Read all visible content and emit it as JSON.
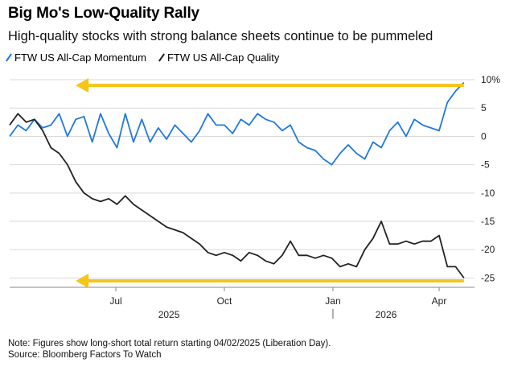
{
  "title": "Big Mo's Low-Quality Rally",
  "subtitle": "High-quality stocks with strong balance sheets continue to be pummeled",
  "note": "Note: Figures show long-short total return starting 04/02/2025 (Liberation Day).",
  "source": "Source: Bloomberg Factors To Watch",
  "colors": {
    "momentum": "#1f78e0",
    "quality": "#222222",
    "arrow": "#f5c518"
  },
  "chart_data": {
    "type": "line",
    "title": "Big Mo's Low-Quality Rally",
    "subtitle": "High-quality stocks with strong balance sheets continue to be pummeled",
    "y_tick_labels": [
      "10%",
      "5",
      "0",
      "-5",
      "-10",
      "-15",
      "-20",
      "-25"
    ],
    "y_ticks": [
      10,
      5,
      0,
      -5,
      -10,
      -15,
      -20,
      -25
    ],
    "ylim": [
      -26.5,
      11
    ],
    "x_tick_labels": [
      "Jul",
      "Oct",
      "Jan",
      "Apr"
    ],
    "x_ticks": [
      "2025-07-01",
      "2025-10-01",
      "2026-01-01",
      "2026-04-01"
    ],
    "year_labels": [
      "2025",
      "2026"
    ],
    "year_positions": [
      "2025-08-15",
      "2026-02-15"
    ],
    "xlim": [
      "2025-04-02",
      "2026-05-01"
    ],
    "grid": true,
    "legend": "top-left",
    "series": [
      {
        "name": "FTW US All-Cap Momentum",
        "x": [
          "2025-04-02",
          "2025-04-09",
          "2025-04-16",
          "2025-04-23",
          "2025-04-30",
          "2025-05-07",
          "2025-05-14",
          "2025-05-21",
          "2025-05-28",
          "2025-06-04",
          "2025-06-11",
          "2025-06-18",
          "2025-06-25",
          "2025-07-02",
          "2025-07-09",
          "2025-07-16",
          "2025-07-23",
          "2025-07-30",
          "2025-08-06",
          "2025-08-13",
          "2025-08-20",
          "2025-08-27",
          "2025-09-03",
          "2025-09-10",
          "2025-09-17",
          "2025-09-24",
          "2025-10-01",
          "2025-10-08",
          "2025-10-15",
          "2025-10-22",
          "2025-10-29",
          "2025-11-05",
          "2025-11-12",
          "2025-11-19",
          "2025-11-26",
          "2025-12-03",
          "2025-12-10",
          "2025-12-17",
          "2025-12-24",
          "2025-12-31",
          "2026-01-07",
          "2026-01-14",
          "2026-01-21",
          "2026-01-28",
          "2026-02-04",
          "2026-02-11",
          "2026-02-18",
          "2026-02-25",
          "2026-03-04",
          "2026-03-11",
          "2026-03-18",
          "2026-03-25",
          "2026-04-01",
          "2026-04-08",
          "2026-04-15",
          "2026-04-22"
        ],
        "y": [
          0,
          2,
          1,
          3,
          1.5,
          2,
          4,
          0,
          3,
          3.5,
          -1,
          4,
          0.5,
          -2,
          4,
          -1,
          3,
          -1,
          1.5,
          -0.5,
          2,
          0.5,
          -1,
          1,
          4,
          2,
          2,
          0.5,
          3,
          2,
          4,
          3,
          2.5,
          1,
          2,
          -1,
          -2,
          -2.5,
          -4,
          -5,
          -3,
          -1.5,
          -3,
          -4,
          -1,
          -2,
          1,
          2.5,
          0,
          3,
          2,
          1.5,
          1,
          6,
          8,
          9.5
        ]
      },
      {
        "name": "FTW US All-Cap Quality",
        "x": [
          "2025-04-02",
          "2025-04-09",
          "2025-04-16",
          "2025-04-23",
          "2025-04-30",
          "2025-05-07",
          "2025-05-14",
          "2025-05-21",
          "2025-05-28",
          "2025-06-04",
          "2025-06-11",
          "2025-06-18",
          "2025-06-25",
          "2025-07-02",
          "2025-07-09",
          "2025-07-16",
          "2025-07-23",
          "2025-07-30",
          "2025-08-06",
          "2025-08-13",
          "2025-08-20",
          "2025-08-27",
          "2025-09-03",
          "2025-09-10",
          "2025-09-17",
          "2025-09-24",
          "2025-10-01",
          "2025-10-08",
          "2025-10-15",
          "2025-10-22",
          "2025-10-29",
          "2025-11-05",
          "2025-11-12",
          "2025-11-19",
          "2025-11-26",
          "2025-12-03",
          "2025-12-10",
          "2025-12-17",
          "2025-12-24",
          "2025-12-31",
          "2026-01-07",
          "2026-01-14",
          "2026-01-21",
          "2026-01-28",
          "2026-02-04",
          "2026-02-11",
          "2026-02-18",
          "2026-02-25",
          "2026-03-04",
          "2026-03-11",
          "2026-03-18",
          "2026-03-25",
          "2026-04-01",
          "2026-04-08",
          "2026-04-15",
          "2026-04-22"
        ],
        "y": [
          2,
          4,
          2.5,
          3,
          1,
          -2,
          -3,
          -5,
          -8,
          -10,
          -11,
          -11.5,
          -11,
          -12,
          -10.5,
          -12,
          -13,
          -14,
          -15,
          -16,
          -16.5,
          -17,
          -18,
          -19,
          -20.5,
          -21,
          -20.5,
          -21,
          -22,
          -20.5,
          -21,
          -22,
          -22.5,
          -21,
          -18.5,
          -21,
          -21,
          -21.5,
          -21,
          -21.5,
          -23,
          -22.5,
          -23,
          -20,
          -18,
          -15,
          -19,
          -19,
          -18.5,
          -19,
          -18.5,
          -18.5,
          -17.5,
          -23,
          -23,
          -25
        ]
      }
    ],
    "annotations": [
      {
        "type": "arrow",
        "from_date": "2026-04-22",
        "to_date": "2025-05-28",
        "y": 9,
        "direction": "left"
      },
      {
        "type": "arrow",
        "from_date": "2026-04-22",
        "to_date": "2025-05-28",
        "y": -25.5,
        "direction": "left"
      }
    ]
  }
}
